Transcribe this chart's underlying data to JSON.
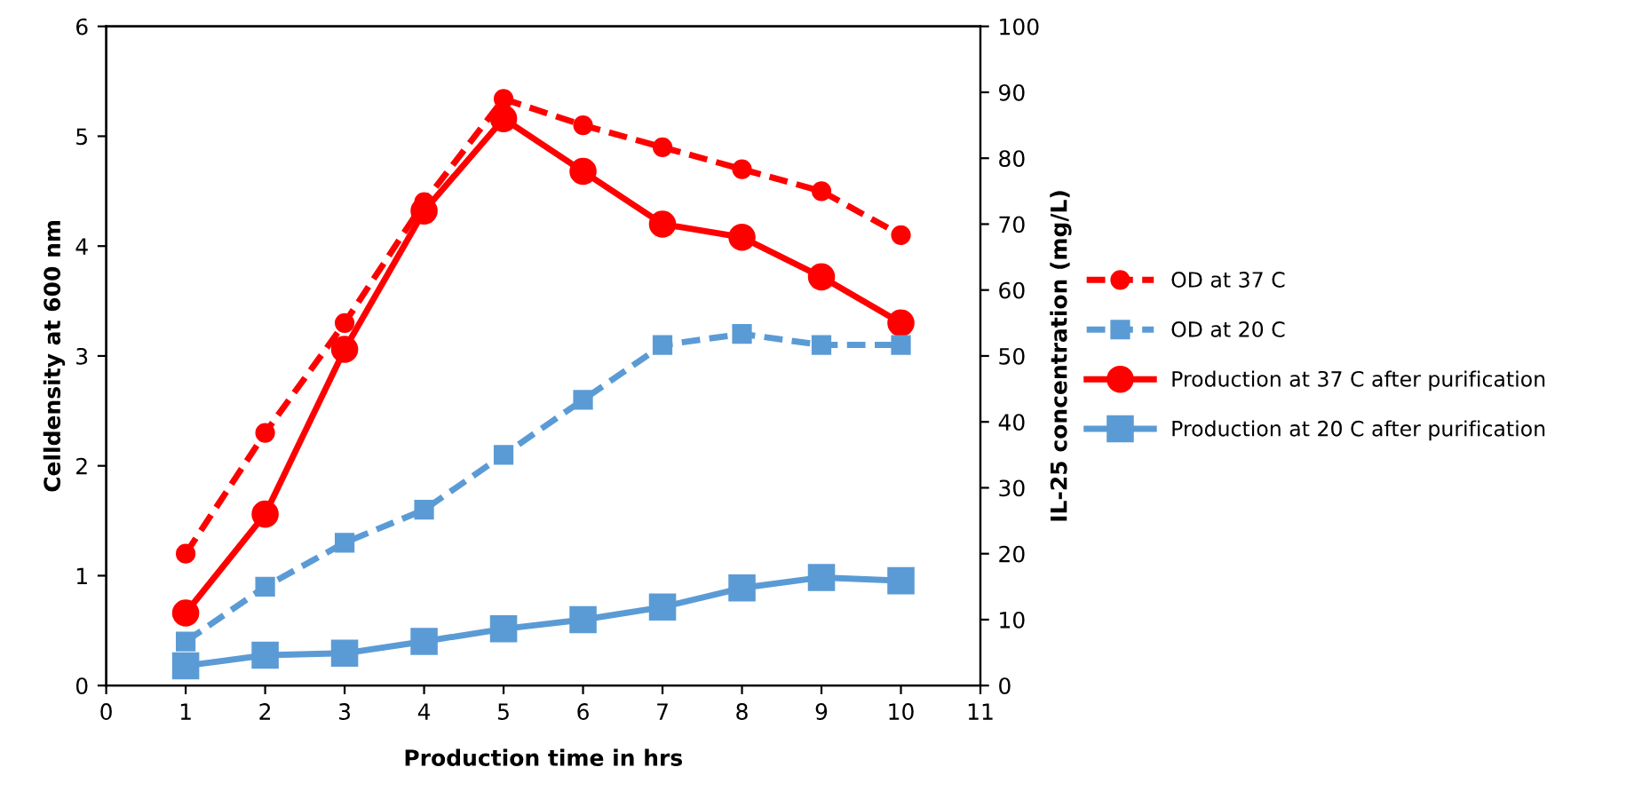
{
  "chart_data": {
    "type": "line",
    "xlabel": "Production time in hrs",
    "ylabel": "Celldensity at 600 nm",
    "y2label": "IL-25 concentration (mg/L)",
    "x": [
      1,
      2,
      3,
      4,
      5,
      6,
      7,
      8,
      9,
      10
    ],
    "series": [
      {
        "name": "OD at 37 C",
        "color": "#ff0000",
        "marker": "circle",
        "line_style": "dashed",
        "values": [
          1.2,
          2.3,
          3.3,
          4.4,
          5.34,
          5.1,
          4.9,
          4.7,
          4.5,
          4.1
        ]
      },
      {
        "name": "OD at 20 C",
        "color": "#5b9bd5",
        "marker": "square",
        "line_style": "dashed",
        "values": [
          0.4,
          0.9,
          1.3,
          1.6,
          2.1,
          2.6,
          3.1,
          3.2,
          3.1,
          3.1
        ]
      },
      {
        "name": "Production at 37 C after purification",
        "color": "#ff0000",
        "marker": "circle",
        "line_style": "solid",
        "axis": "y2",
        "values": [
          11,
          26,
          51,
          72,
          86,
          78,
          70,
          68,
          62,
          55
        ]
      },
      {
        "name": "Production at 20 C after purification",
        "color": "#5b9bd5",
        "marker": "square",
        "line_style": "solid",
        "axis": "y2",
        "values": [
          3,
          4.6,
          4.9,
          6.7,
          8.6,
          10,
          11.9,
          14.8,
          16.4,
          15.9
        ]
      }
    ],
    "xlim": [
      0,
      11
    ],
    "xticks": [
      0,
      1,
      2,
      3,
      4,
      5,
      6,
      7,
      8,
      9,
      10,
      11
    ],
    "ylim": [
      0,
      6
    ],
    "yticks": [
      0,
      1,
      2,
      3,
      4,
      5,
      6
    ],
    "y2lim": [
      0,
      100
    ],
    "y2ticks": [
      0,
      10,
      20,
      30,
      40,
      50,
      60,
      70,
      80,
      90,
      100
    ],
    "grid": false,
    "legend": "right"
  }
}
